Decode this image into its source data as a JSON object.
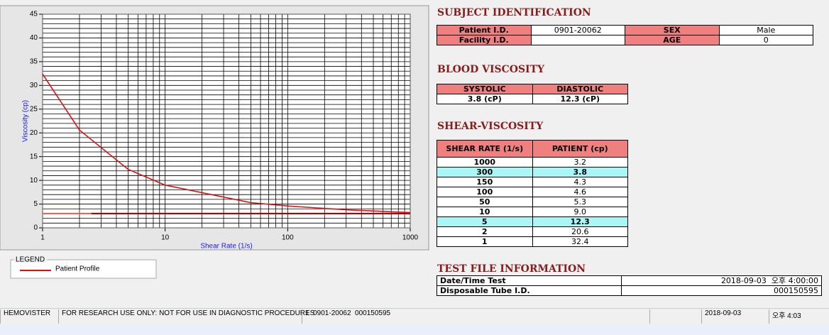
{
  "chart_data": {
    "type": "line",
    "xlabel": "Shear Rate (1/s)",
    "ylabel": "Viscosity (cp)",
    "xscale": "log",
    "x": [
      1,
      2,
      5,
      10,
      50,
      100,
      150,
      300,
      1000
    ],
    "series": [
      {
        "name": "Patient Profile",
        "color": "#e01010",
        "values": [
          32.4,
          20.6,
          12.3,
          9.0,
          5.3,
          4.6,
          4.3,
          3.8,
          3.2
        ]
      }
    ],
    "hlines": [
      {
        "y": 3,
        "x": [
          1,
          1000
        ],
        "color": "#ff5050"
      },
      {
        "y": 3,
        "x": [
          2.5,
          1000
        ],
        "color": "#a00000"
      }
    ],
    "xlim": [
      1,
      1000
    ],
    "ylim": [
      0,
      45
    ],
    "xticks": [
      1,
      10,
      100,
      1000
    ],
    "yticks": [
      0,
      5,
      10,
      15,
      20,
      25,
      30,
      35,
      40,
      45
    ],
    "x_minor_ticks": [
      2,
      3,
      4,
      5,
      6,
      7,
      8,
      9,
      20,
      30,
      40,
      50,
      60,
      70,
      80,
      90,
      200,
      300,
      400,
      500,
      600,
      700,
      800,
      900
    ],
    "y_minor_ticks": [
      1,
      2,
      3,
      4,
      6,
      7,
      8,
      9,
      11,
      12,
      13,
      14,
      16,
      17,
      18,
      19,
      21,
      22,
      23,
      24,
      26,
      27,
      28,
      29,
      31,
      32,
      33,
      34,
      36,
      37,
      38,
      39,
      41,
      42,
      43,
      44
    ],
    "grid": true,
    "legend_title": "LEGEND"
  },
  "subject_identification": {
    "title": "SUBJECT IDENTIFICATION",
    "rows": [
      [
        {
          "label": "Patient I.D.",
          "value": "0901-20062"
        },
        {
          "label": "SEX",
          "value": "Male"
        }
      ],
      [
        {
          "label": "Facility I.D."
        },
        {
          "label": "AGE",
          "value": "0"
        }
      ]
    ]
  },
  "blood_viscosity": {
    "title": "BLOOD VISCOSITY",
    "headers": [
      "SYSTOLIC",
      "DIASTOLIC"
    ],
    "values": [
      "3.8 (cP)",
      "12.3 (cP)"
    ]
  },
  "shear_viscosity": {
    "title": "SHEAR-VISCOSITY",
    "headers": [
      "SHEAR RATE (1/s)",
      "PATIENT (cp)"
    ],
    "rows": [
      {
        "cells": [
          "1000",
          "3.2"
        ]
      },
      {
        "cells": [
          "300",
          "3.8"
        ],
        "highlight": true
      },
      {
        "cells": [
          "150",
          "4.3"
        ]
      },
      {
        "cells": [
          "100",
          "4.6"
        ]
      },
      {
        "cells": [
          "50",
          "5.3"
        ]
      },
      {
        "cells": [
          "10",
          "9.0"
        ]
      },
      {
        "cells": [
          "5",
          "12.3"
        ],
        "highlight": true
      },
      {
        "cells": [
          "2",
          "20.6"
        ]
      },
      {
        "cells": [
          "1",
          "32.4"
        ]
      }
    ]
  },
  "test_file_information": {
    "title": "TEST FILE INFORMATION",
    "rows": [
      [
        "Date/Time Test",
        "2018-09-03  오후 4:00:00"
      ],
      [
        "Disposable Tube I.D.",
        "000150595"
      ]
    ]
  },
  "status_bar": [
    "HEMOVISTER",
    "FOR RESEARCH USE ONLY: NOT FOR USE IN DIAGNOSTIC PROCEDURES",
    "1  0901-20062  000150595",
    "2018-09-03",
    "오후 4:03"
  ]
}
